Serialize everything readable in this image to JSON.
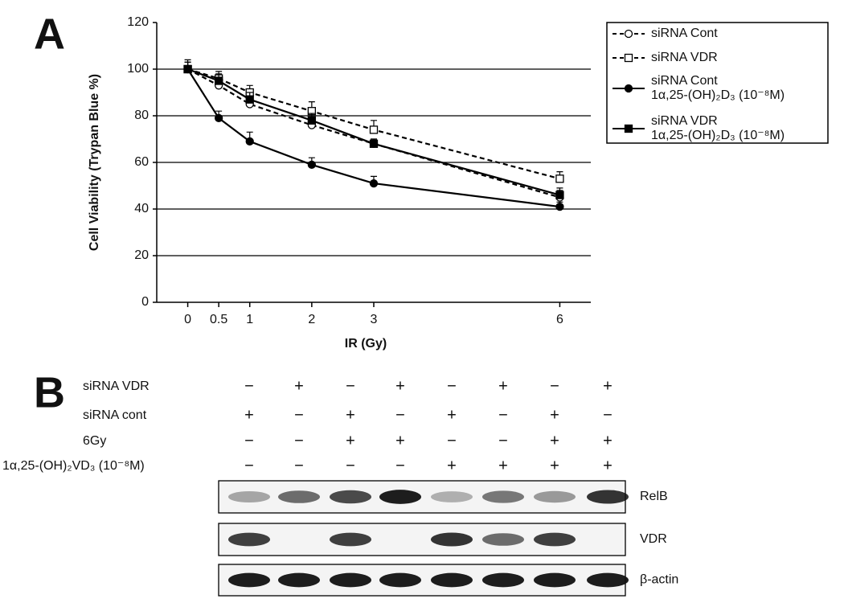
{
  "panel_labels": [
    "A",
    "B"
  ],
  "chart_data": {
    "type": "line",
    "xlabel": "IR (Gy)",
    "ylabel": "Cell Viability (Trypan Blue %)",
    "x": [
      0,
      0.5,
      1,
      2,
      3,
      6
    ],
    "xlim": [
      -0.5,
      6.5
    ],
    "xticks": [
      0,
      0.5,
      1,
      2,
      3,
      6
    ],
    "ylim": [
      0,
      120
    ],
    "yticks": [
      0,
      20,
      40,
      60,
      80,
      100,
      120
    ],
    "grid": true,
    "series": [
      {
        "name": "siRNA Cont",
        "color": "#000000",
        "marker": "circle-open",
        "dashed": true,
        "values": [
          100,
          93,
          85,
          76,
          68,
          45
        ],
        "errors": [
          3,
          3,
          3,
          3,
          2,
          3
        ]
      },
      {
        "name": "siRNA VDR",
        "color": "#000000",
        "marker": "square-open",
        "dashed": true,
        "values": [
          100,
          96,
          90,
          82,
          74,
          53
        ],
        "errors": [
          4,
          3,
          3,
          4,
          4,
          3
        ]
      },
      {
        "name": "siRNA Cont\n1α,25-(OH)₂D₃ (10⁻⁸M)",
        "color": "#000000",
        "marker": "circle",
        "dashed": false,
        "values": [
          100,
          79,
          69,
          59,
          51,
          41
        ],
        "errors": [
          3,
          3,
          4,
          3,
          3,
          2
        ]
      },
      {
        "name": "siRNA VDR\n1α,25-(OH)₂D₃ (10⁻⁸M)",
        "color": "#000000",
        "marker": "square",
        "dashed": false,
        "values": [
          100,
          95,
          87,
          78,
          68,
          46
        ],
        "errors": [
          3,
          3,
          3,
          3,
          2,
          3
        ]
      }
    ]
  },
  "blot": {
    "conditions": [
      {
        "label": "siRNA VDR",
        "signs": [
          "−",
          "+",
          "−",
          "+",
          "−",
          "+",
          "−",
          "+"
        ]
      },
      {
        "label": "siRNA cont",
        "signs": [
          "+",
          "−",
          "+",
          "−",
          "+",
          "−",
          "+",
          "−"
        ]
      },
      {
        "label": "6Gy",
        "signs": [
          "−",
          "−",
          "+",
          "+",
          "−",
          "−",
          "+",
          "+"
        ]
      },
      {
        "label": "1α,25-(OH)₂VD₃ (10⁻⁸M)",
        "signs": [
          "−",
          "−",
          "−",
          "−",
          "+",
          "+",
          "+",
          "+"
        ]
      }
    ],
    "proteins": [
      "RelB",
      "VDR",
      "β-actin"
    ]
  }
}
